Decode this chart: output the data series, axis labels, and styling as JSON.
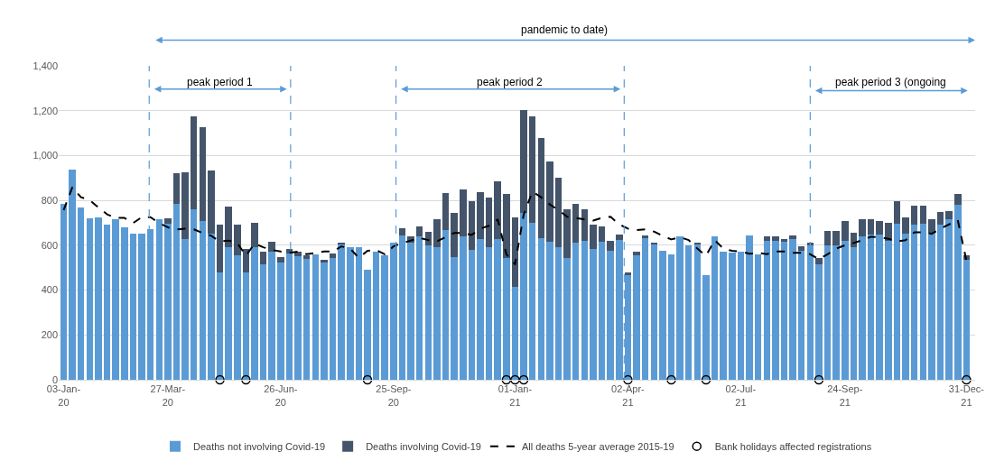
{
  "chart_data": {
    "type": "bar",
    "stacked": true,
    "x": [
      "2020-01-03",
      "2020-01-10",
      "2020-01-17",
      "2020-01-24",
      "2020-01-31",
      "2020-02-07",
      "2020-02-14",
      "2020-02-21",
      "2020-02-28",
      "2020-03-06",
      "2020-03-13",
      "2020-03-20",
      "2020-03-27",
      "2020-04-03",
      "2020-04-10",
      "2020-04-17",
      "2020-04-24",
      "2020-05-01",
      "2020-05-08",
      "2020-05-15",
      "2020-05-22",
      "2020-05-29",
      "2020-06-05",
      "2020-06-12",
      "2020-06-19",
      "2020-06-26",
      "2020-07-03",
      "2020-07-10",
      "2020-07-17",
      "2020-07-24",
      "2020-07-31",
      "2020-08-07",
      "2020-08-14",
      "2020-08-21",
      "2020-08-28",
      "2020-09-04",
      "2020-09-11",
      "2020-09-18",
      "2020-09-25",
      "2020-10-02",
      "2020-10-09",
      "2020-10-16",
      "2020-10-23",
      "2020-10-30",
      "2020-11-06",
      "2020-11-13",
      "2020-11-20",
      "2020-11-27",
      "2020-12-04",
      "2020-12-11",
      "2020-12-18",
      "2020-12-25",
      "2021-01-01",
      "2021-01-08",
      "2021-01-15",
      "2021-01-22",
      "2021-01-29",
      "2021-02-05",
      "2021-02-12",
      "2021-02-19",
      "2021-02-26",
      "2021-03-05",
      "2021-03-12",
      "2021-03-19",
      "2021-03-26",
      "2021-04-02",
      "2021-04-09",
      "2021-04-16",
      "2021-04-23",
      "2021-04-30",
      "2021-05-07",
      "2021-05-14",
      "2021-05-21",
      "2021-05-28",
      "2021-06-04",
      "2021-06-11",
      "2021-06-18",
      "2021-06-25",
      "2021-07-02",
      "2021-07-09",
      "2021-07-16",
      "2021-07-23",
      "2021-07-30",
      "2021-08-06",
      "2021-08-13",
      "2021-08-20",
      "2021-08-27",
      "2021-09-03",
      "2021-09-10",
      "2021-09-17",
      "2021-09-24",
      "2021-10-01",
      "2021-10-08",
      "2021-10-15",
      "2021-10-22",
      "2021-10-29",
      "2021-11-05",
      "2021-11-12",
      "2021-11-19",
      "2021-11-26",
      "2021-12-03",
      "2021-12-10",
      "2021-12-17",
      "2021-12-24",
      "2021-12-31"
    ],
    "series": [
      {
        "name": "Deaths not involving Covid-19",
        "color": "#5b9bd5",
        "values": [
          786,
          938,
          767,
          721,
          726,
          690,
          718,
          679,
          650,
          650,
          673,
          718,
          697,
          786,
          626,
          762,
          710,
          651,
          479,
          591,
          556,
          479,
          591,
          514,
          572,
          521,
          563,
          552,
          540,
          560,
          525,
          545,
          604,
          590,
          590,
          490,
          572,
          556,
          613,
          645,
          610,
          638,
          598,
          591,
          668,
          549,
          641,
          579,
          626,
          591,
          626,
          544,
          413,
          744,
          702,
          632,
          614,
          591,
          544,
          610,
          621,
          585,
          614,
          575,
          622,
          468,
          556,
          632,
          604,
          577,
          560,
          638,
          600,
          605,
          467,
          638,
          572,
          566,
          572,
          642,
          560,
          621,
          621,
          614,
          626,
          577,
          600,
          515,
          600,
          600,
          621,
          590,
          638,
          649,
          646,
          621,
          696,
          651,
          692,
          696,
          657,
          690,
          715,
          780,
          534
        ]
      },
      {
        "name": "Deaths involving Covid-19",
        "color": "#44546a",
        "values": [
          0,
          0,
          0,
          0,
          0,
          0,
          0,
          0,
          0,
          0,
          0,
          0,
          24,
          135,
          301,
          413,
          417,
          281,
          211,
          182,
          134,
          106,
          111,
          59,
          42,
          28,
          22,
          21,
          14,
          0,
          12,
          20,
          9,
          0,
          0,
          0,
          0,
          0,
          0,
          29,
          28,
          45,
          63,
          124,
          165,
          195,
          208,
          216,
          211,
          223,
          258,
          283,
          312,
          458,
          472,
          446,
          359,
          312,
          216,
          176,
          139,
          106,
          69,
          46,
          27,
          11,
          16,
          13,
          9,
          0,
          0,
          0,
          0,
          8,
          0,
          0,
          0,
          0,
          0,
          0,
          0,
          17,
          17,
          15,
          16,
          18,
          13,
          29,
          65,
          65,
          87,
          64,
          77,
          69,
          62,
          81,
          99,
          74,
          86,
          82,
          58,
          60,
          39,
          47,
          22
        ]
      },
      {
        "name": "All deaths 5-year average 2015-19",
        "type": "line",
        "color": "#000000",
        "line_style": "dashed",
        "marker": "none",
        "values": [
          757,
          858,
          814,
          801,
          769,
          738,
          722,
          722,
          699,
          725,
          725,
          699,
          680,
          671,
          674,
          671,
          655,
          642,
          617,
          621,
          610,
          553,
          608,
          591,
          579,
          572,
          566,
          572,
          560,
          566,
          572,
          572,
          595,
          585,
          544,
          575,
          579,
          560,
          595,
          610,
          621,
          633,
          623,
          617,
          636,
          655,
          655,
          646,
          674,
          687,
          715,
          560,
          515,
          738,
          839,
          814,
          782,
          757,
          727,
          722,
          715,
          710,
          722,
          727,
          693,
          674,
          668,
          671,
          661,
          642,
          626,
          636,
          623,
          585,
          553,
          623,
          585,
          575,
          572,
          562,
          566,
          560,
          572,
          572,
          566,
          566,
          560,
          537,
          560,
          585,
          600,
          610,
          623,
          638,
          636,
          629,
          617,
          623,
          658,
          658,
          651,
          674,
          693,
          712,
          530
        ]
      },
      {
        "name": "Bank holidays affected registrations",
        "type": "scatter",
        "color": "#000000",
        "marker": "circle",
        "x": [
          "2020-05-08",
          "2020-05-29",
          "2020-09-04",
          "2020-12-25",
          "2021-01-01",
          "2021-01-08",
          "2021-04-02",
          "2021-05-07",
          "2021-06-04",
          "2021-09-03",
          "2021-12-31"
        ],
        "values": [
          0,
          0,
          0,
          0,
          0,
          0,
          0,
          0,
          0,
          0,
          0
        ]
      }
    ],
    "xlim": [
      "2019-12-30",
      "2022-01-07"
    ],
    "xticks": [
      {
        "value": "2020-01-03",
        "label": "03-Jan-\n20"
      },
      {
        "value": "2020-03-27",
        "label": "27-Mar-\n20"
      },
      {
        "value": "2020-06-26",
        "label": "26-Jun-\n20"
      },
      {
        "value": "2020-09-25",
        "label": "25-Sep-\n20"
      },
      {
        "value": "2021-01-01",
        "label": "01-Jan-\n21"
      },
      {
        "value": "2021-04-02",
        "label": "02-Apr-\n21"
      },
      {
        "value": "2021-07-02",
        "label": "02-Jul-\n21"
      },
      {
        "value": "2021-09-24",
        "label": "24-Sep-\n21"
      },
      {
        "value": "2021-12-31",
        "label": "31-Dec-\n21"
      }
    ],
    "ylim": [
      0,
      1400
    ],
    "yticks": [
      0,
      200,
      400,
      600,
      800,
      {
        "value": 1000,
        "label": "1,000"
      },
      {
        "value": 1200,
        "label": "1,200"
      },
      {
        "value": 1400,
        "label": "1,400"
      }
    ],
    "grid": "y",
    "legend": "bottom",
    "ref_lines": [
      {
        "axis": "x",
        "value": "2020-03-12",
        "color": "#5b9bd5",
        "line_style": "dashed"
      },
      {
        "axis": "x",
        "value": "2020-07-04",
        "color": "#5b9bd5",
        "line_style": "dashed"
      },
      {
        "axis": "x",
        "value": "2020-09-27",
        "color": "#5b9bd5",
        "line_style": "dashed"
      },
      {
        "axis": "x",
        "value": "2021-03-30",
        "color": "#5b9bd5",
        "line_style": "dashed"
      },
      {
        "axis": "x",
        "value": "2021-08-27",
        "color": "#5b9bd5",
        "line_style": "dashed"
      }
    ],
    "annotations": [
      "pandemic to date)",
      "peak period 1",
      "peak period 2",
      "peak period 3 (ongoing"
    ]
  }
}
